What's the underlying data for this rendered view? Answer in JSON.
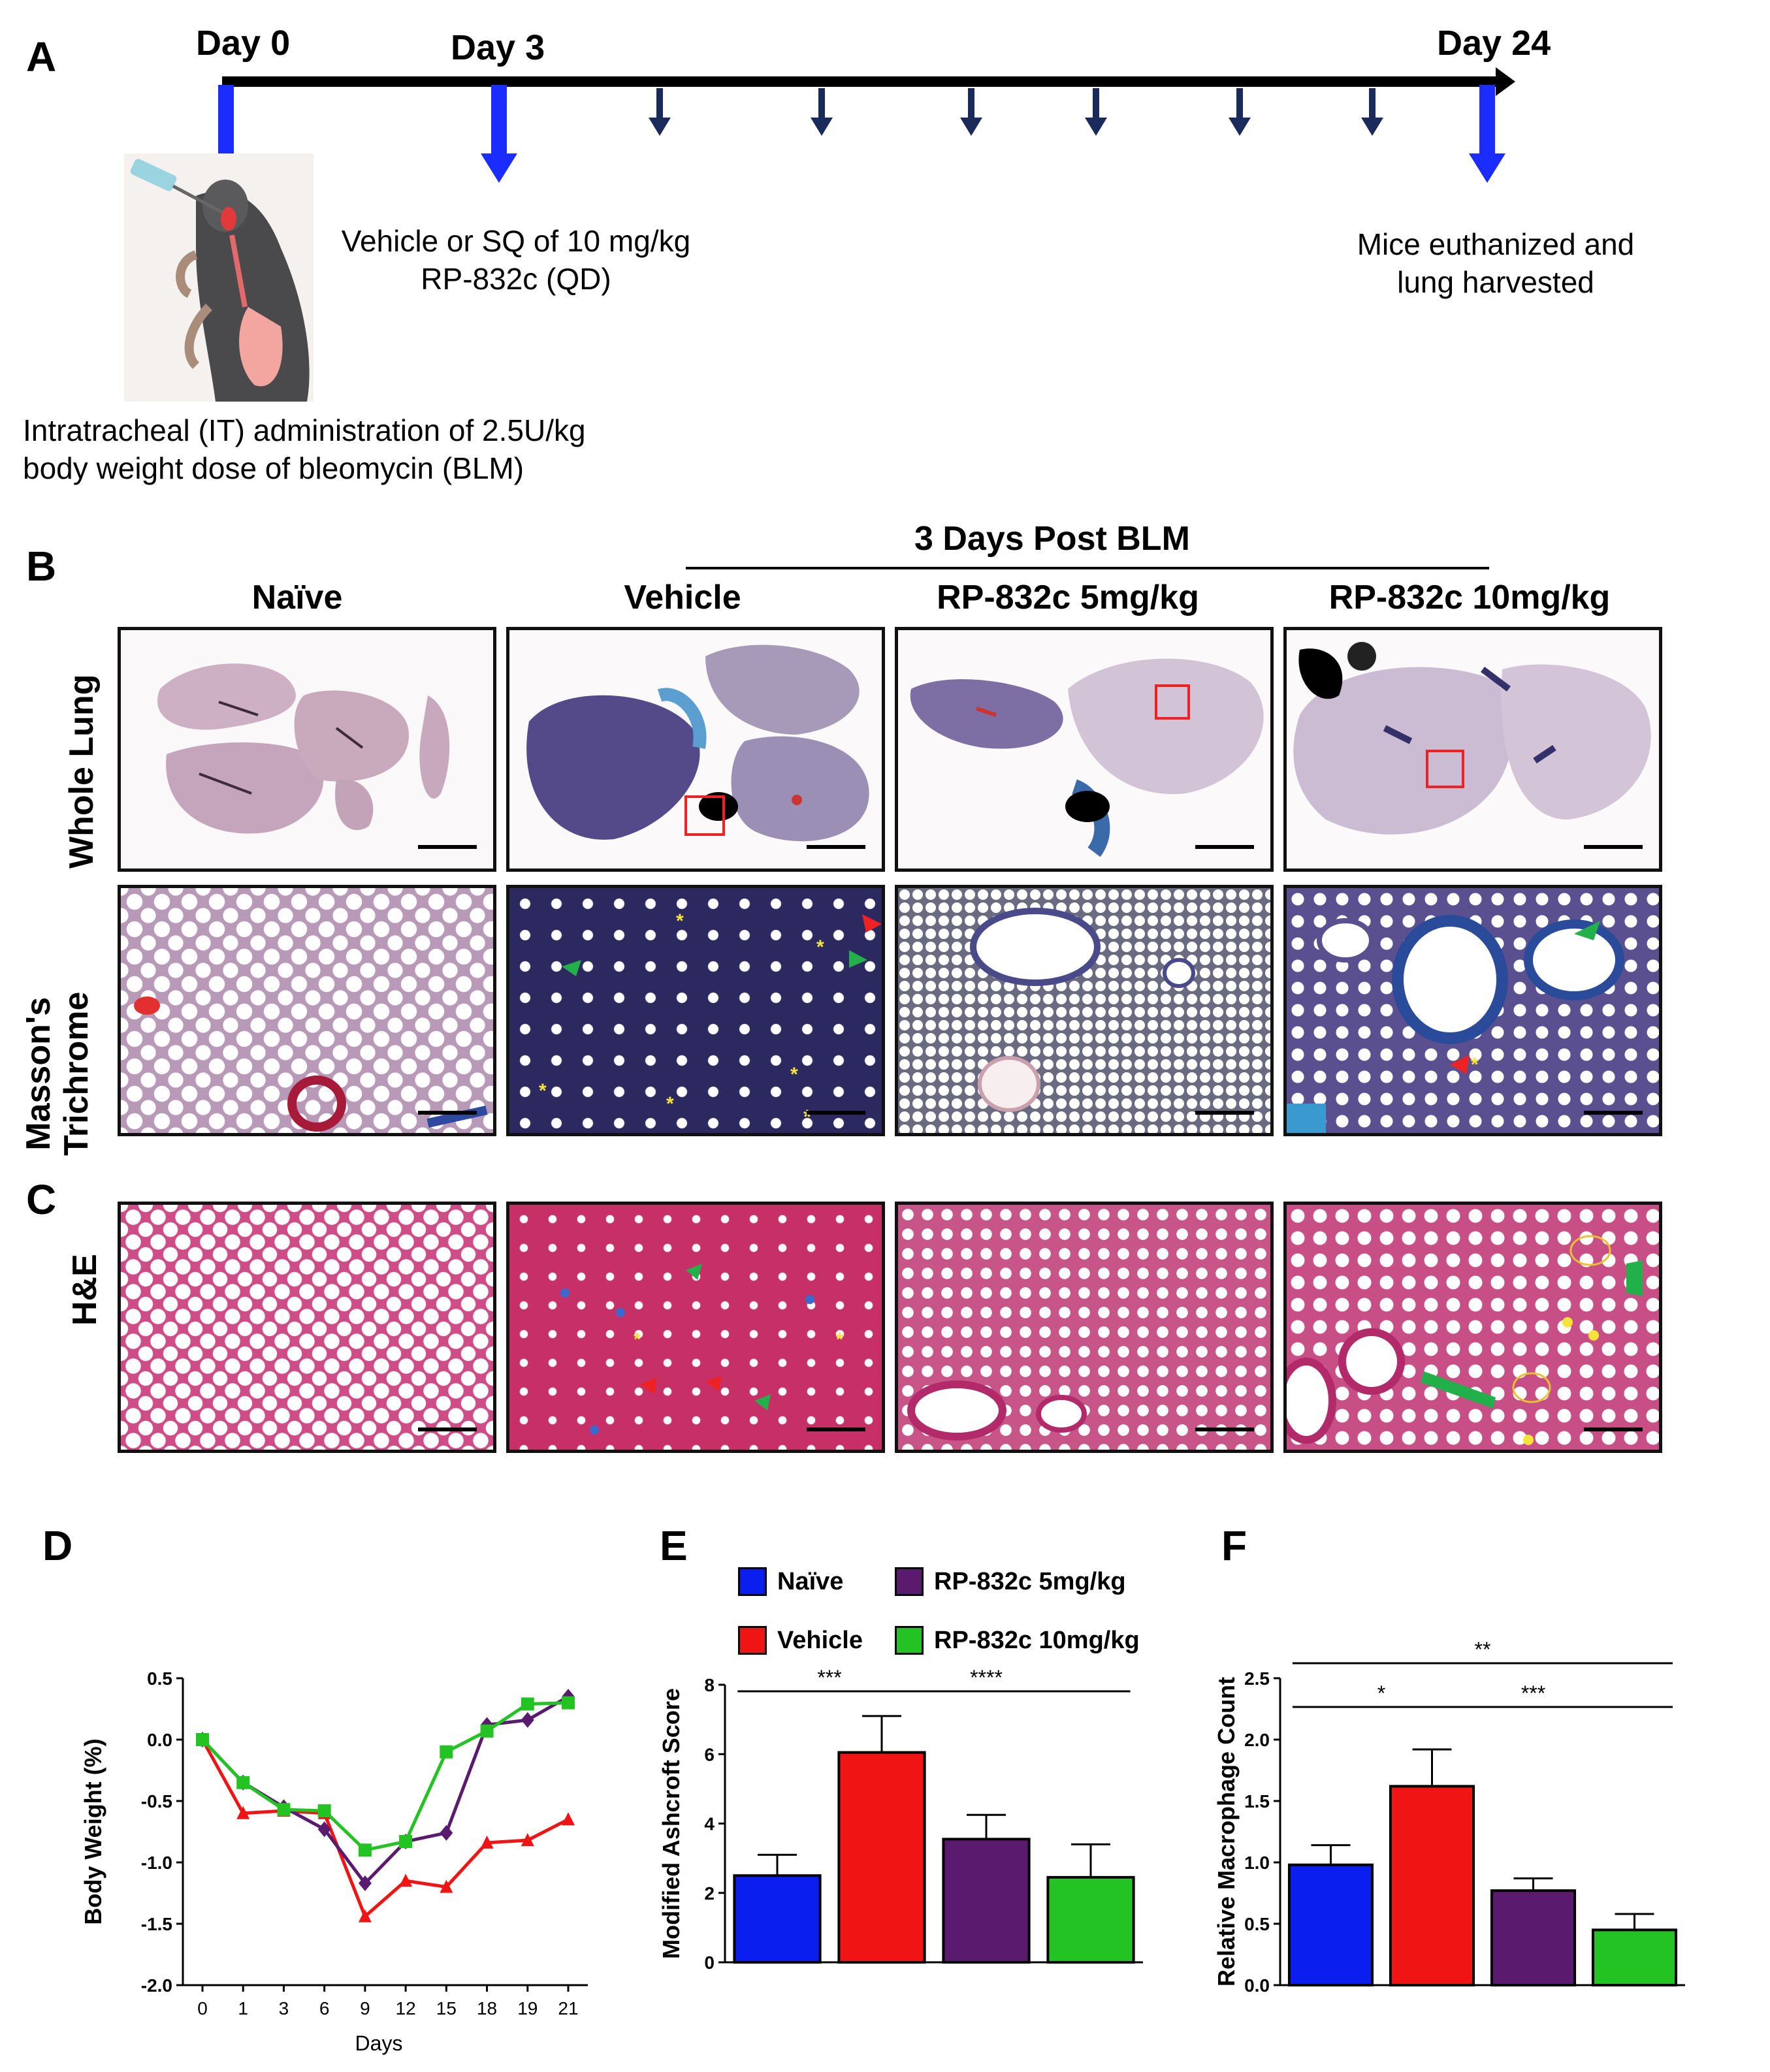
{
  "panels": {
    "A": {
      "letter": "A",
      "day0": "Day 0",
      "day3": "Day 3",
      "day24": "Day 24",
      "treatment": [
        "Vehicle or SQ of 10 mg/kg",
        "RP-832c (QD)"
      ],
      "endpoint": [
        "Mice euthanized and",
        "lung harvested"
      ],
      "induction": [
        "Intratracheal (IT) administration of 2.5U/kg",
        "body weight dose of bleomycin (BLM)"
      ]
    },
    "B": {
      "letter": "B",
      "group_header": "3 Days Post BLM",
      "columns": [
        "Naïve",
        "Vehicle",
        "RP-832c 5mg/kg",
        "RP-832c 10mg/kg"
      ],
      "row1": "Whole Lung",
      "row2_line1": "Masson's",
      "row2_line2": "Trichrome"
    },
    "C": {
      "letter": "C",
      "row": "H&E"
    },
    "D": {
      "letter": "D"
    },
    "E": {
      "letter": "E"
    },
    "F": {
      "letter": "F"
    }
  },
  "legend": [
    {
      "label": "Naïve",
      "color": "#0a1ef0"
    },
    {
      "label": "RP-832c 5mg/kg",
      "color": "#5a1a6e"
    },
    {
      "label": "Vehicle",
      "color": "#f01414"
    },
    {
      "label": "RP-832c 10mg/kg",
      "color": "#22c322"
    }
  ],
  "chart_data": [
    {
      "panel": "D",
      "type": "line",
      "xlabel": "Days",
      "ylabel": "Body Weight (%)",
      "categories": [
        "0",
        "1",
        "3",
        "6",
        "9",
        "12",
        "15",
        "18",
        "19",
        "21"
      ],
      "ylim": [
        -2.0,
        0.5
      ],
      "yticks": [
        "0.5",
        "0.0",
        "-0.5",
        "-1.0",
        "-1.5",
        "-2.0"
      ],
      "series": [
        {
          "color": "#f01414",
          "marker": "triangle",
          "values": [
            0.0,
            -0.6,
            -0.58,
            -0.6,
            -1.44,
            -1.15,
            -1.2,
            -0.84,
            -0.82,
            -0.65
          ]
        },
        {
          "color": "#5a1a6e",
          "marker": "diamond",
          "values": [
            0.0,
            -0.35,
            -0.55,
            -0.73,
            -1.17,
            -0.83,
            -0.76,
            0.12,
            0.16,
            0.35
          ]
        },
        {
          "color": "#22c322",
          "marker": "square",
          "values": [
            0.0,
            -0.35,
            -0.57,
            -0.58,
            -0.9,
            -0.83,
            -0.1,
            0.07,
            0.29,
            0.3
          ]
        }
      ]
    },
    {
      "panel": "E",
      "type": "bar",
      "ylabel": "Modified Ashcroft Score",
      "ylim": [
        0,
        8
      ],
      "yticks": [
        "0",
        "2",
        "4",
        "6",
        "8"
      ],
      "values": [
        2.5,
        6.05,
        3.55,
        2.45
      ],
      "errors": [
        0.6,
        1.05,
        0.7,
        0.95
      ],
      "colors": [
        "#0a1ef0",
        "#f01414",
        "#5a1a6e",
        "#22c322"
      ],
      "significance": [
        {
          "from": 0,
          "to": 1,
          "label": "***"
        },
        {
          "from": 1,
          "to": 3,
          "label": "****"
        }
      ]
    },
    {
      "panel": "F",
      "type": "bar",
      "ylabel": "Relative Macrophage Count",
      "ylim": [
        0,
        2.5
      ],
      "yticks": [
        "0.0",
        "0.5",
        "1.0",
        "1.5",
        "2.0",
        "2.5"
      ],
      "values": [
        0.98,
        1.62,
        0.77,
        0.45
      ],
      "errors": [
        0.16,
        0.3,
        0.1,
        0.13
      ],
      "colors": [
        "#0a1ef0",
        "#f01414",
        "#5a1a6e",
        "#22c322"
      ],
      "significance": [
        {
          "from": 0,
          "to": 3,
          "label": "**"
        },
        {
          "from": 0,
          "to": 1,
          "label": "*"
        },
        {
          "from": 1,
          "to": 3,
          "label": "***"
        }
      ]
    }
  ]
}
